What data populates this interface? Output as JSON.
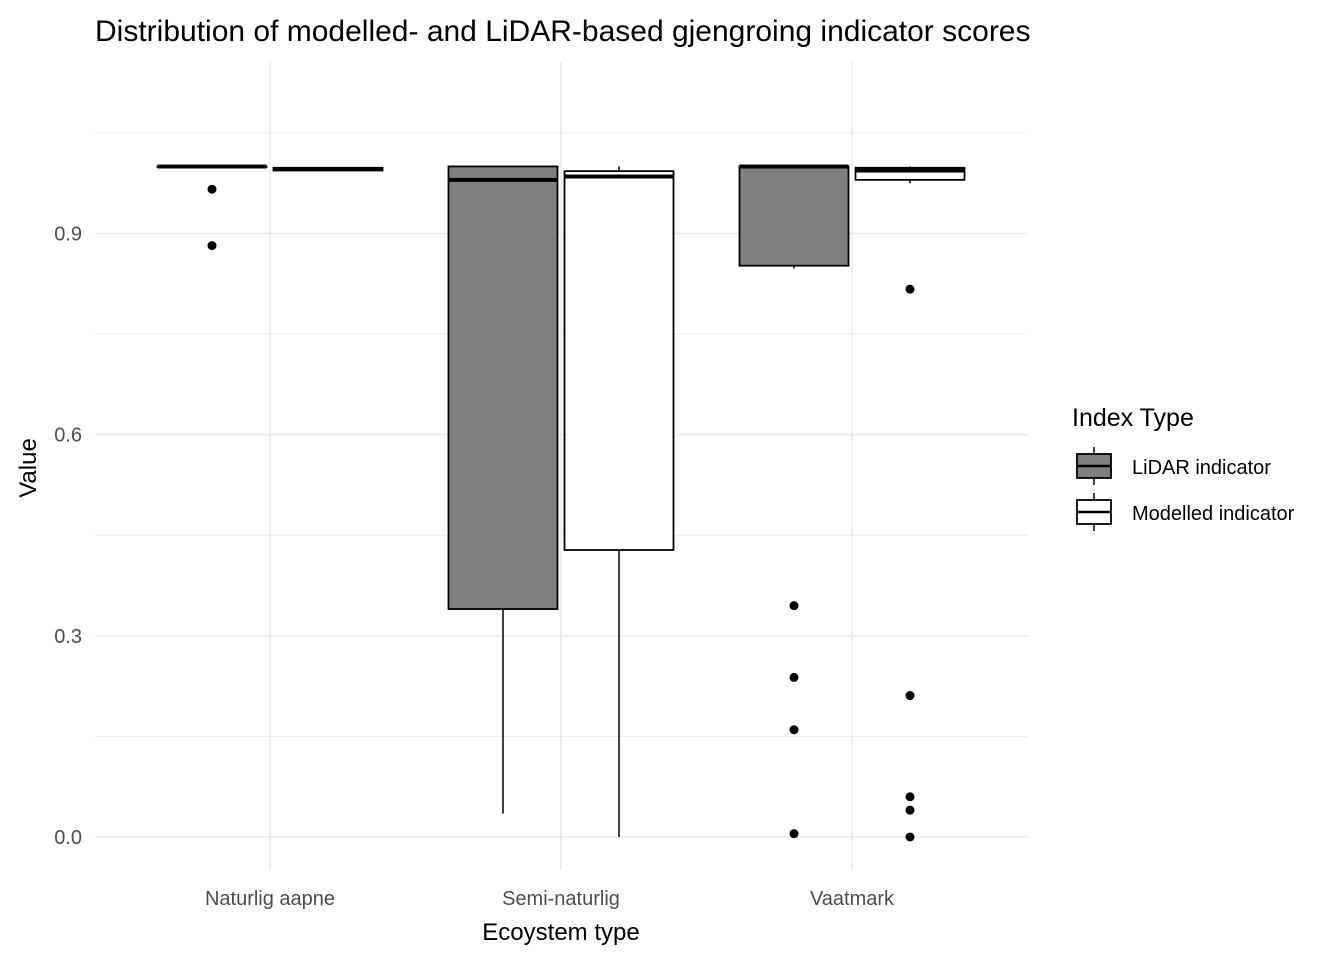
{
  "chart_data": {
    "type": "box",
    "title": "Distribution of modelled- and LiDAR-based gjengroing indicator scores",
    "xlabel": "Ecoystem type",
    "ylabel": "Value",
    "categories": [
      "Naturlig aapne",
      "Semi-naturlig",
      "Vaatmark"
    ],
    "yticks": [
      0.0,
      0.3,
      0.6,
      0.9
    ],
    "ytick_labels": [
      "0.0",
      "0.3",
      "0.6",
      "0.9"
    ],
    "ylim": [
      -0.05,
      1.155
    ],
    "grid": true,
    "legend": {
      "title": "Index Type",
      "position": "right"
    },
    "series": [
      {
        "name": "LiDAR indicator",
        "fill": "#7f7f7f",
        "boxes": [
          {
            "category": "Naturlig aapne",
            "lower_whisker": 1.0,
            "q1": 1.0,
            "median": 1.0,
            "q3": 1.0,
            "upper_whisker": 1.0,
            "outliers": [
              0.966,
              0.882
            ]
          },
          {
            "category": "Semi-naturlig",
            "lower_whisker": 0.035,
            "q1": 0.34,
            "median": 0.98,
            "q3": 1.0,
            "upper_whisker": 1.0,
            "outliers": []
          },
          {
            "category": "Vaatmark",
            "lower_whisker": 0.848,
            "q1": 0.852,
            "median": 1.0,
            "q3": 1.0,
            "upper_whisker": 1.0,
            "outliers": [
              0.345,
              0.238,
              0.16,
              0.005
            ]
          }
        ]
      },
      {
        "name": "Modelled indicator",
        "fill": "#ffffff",
        "boxes": [
          {
            "category": "Naturlig aapne",
            "lower_whisker": 0.994,
            "q1": 0.994,
            "median": 0.996,
            "q3": 0.998,
            "upper_whisker": 0.998,
            "outliers": []
          },
          {
            "category": "Semi-naturlig",
            "lower_whisker": 0.0,
            "q1": 0.428,
            "median": 0.985,
            "q3": 0.993,
            "upper_whisker": 1.0,
            "outliers": []
          },
          {
            "category": "Vaatmark",
            "lower_whisker": 0.975,
            "q1": 0.98,
            "median": 0.994,
            "q3": 0.998,
            "upper_whisker": 1.0,
            "outliers": [
              0.817,
              0.211,
              0.06,
              0.04,
              0.0
            ]
          }
        ]
      }
    ]
  }
}
